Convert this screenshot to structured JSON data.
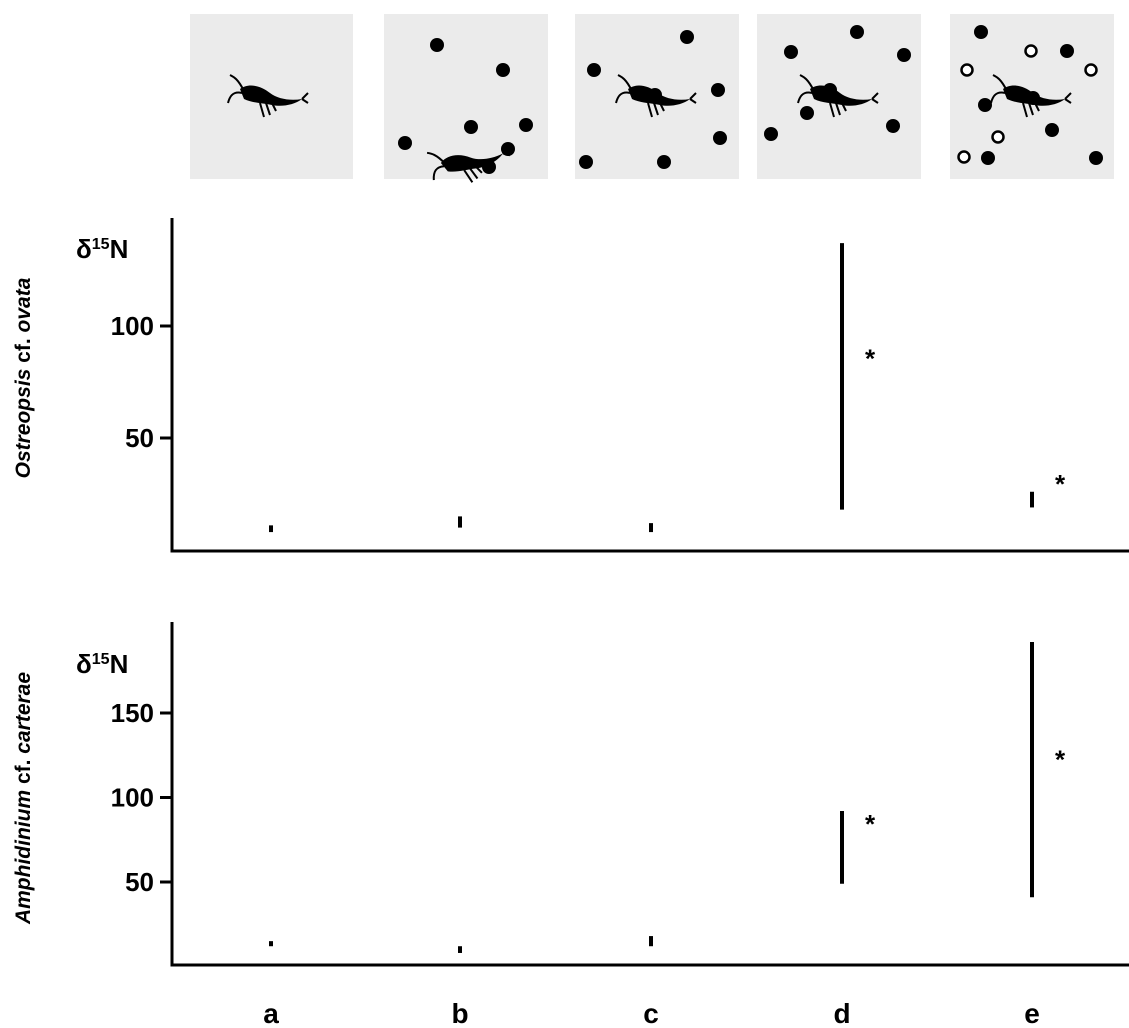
{
  "categories": [
    "a",
    "b",
    "c",
    "d",
    "e"
  ],
  "panel_icons": [
    {
      "category": "a",
      "organism": "copepod-icon",
      "filled_cells": 0,
      "open_cells": 0
    },
    {
      "category": "b",
      "organism": "copepod-icon",
      "filled_cells": 7,
      "open_cells": 0
    },
    {
      "category": "c",
      "organism": "copepod-icon",
      "filled_cells": 7,
      "open_cells": 0
    },
    {
      "category": "d",
      "organism": "copepod-icon",
      "filled_cells": 7,
      "open_cells": 0
    },
    {
      "category": "e",
      "organism": "copepod-icon",
      "filled_cells": 7,
      "open_cells": 5
    }
  ],
  "colors": {
    "panel_background": "#ebebeb",
    "ink": "#000000",
    "open_cell_fill": "#ffffff"
  },
  "chart_data": [
    {
      "type": "range",
      "species_label": {
        "genus": "Ostreopsis",
        "rest": " cf. ",
        "species": "ovata"
      },
      "unit_label": {
        "base": "δ",
        "sup": "15",
        "tail": "N"
      },
      "yticks": [
        50,
        100
      ],
      "ylim": [
        7,
        145
      ],
      "categories": [
        "a",
        "b",
        "c",
        "d",
        "e"
      ],
      "ranges": [
        [
          8,
          11
        ],
        [
          10,
          15
        ],
        [
          8,
          12
        ],
        [
          18,
          137
        ],
        [
          19,
          26
        ]
      ],
      "significance": [
        "",
        "",
        "",
        "*",
        "*"
      ]
    },
    {
      "type": "range",
      "species_label": {
        "genus": "Amphidinium",
        "rest": " cf. ",
        "species": "carterae"
      },
      "unit_label": {
        "base": "δ",
        "sup": "15",
        "tail": "N"
      },
      "yticks": [
        50,
        100,
        150
      ],
      "ylim": [
        1,
        198
      ],
      "categories": [
        "a",
        "b",
        "c",
        "d",
        "e"
      ],
      "ranges": [
        [
          12,
          15
        ],
        [
          8,
          12
        ],
        [
          12,
          18
        ],
        [
          49,
          92
        ],
        [
          41,
          192
        ]
      ],
      "significance": [
        "",
        "",
        "",
        "*",
        "*"
      ]
    }
  ]
}
